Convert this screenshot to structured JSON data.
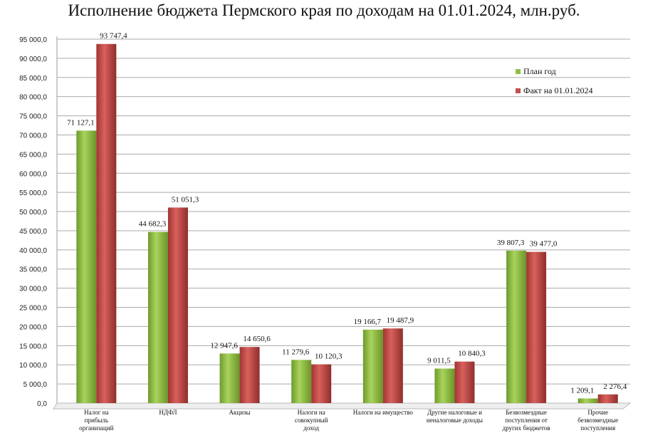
{
  "chart_data": {
    "type": "bar",
    "title": "Исполнение бюджета Пермского края по доходам на 01.01.2024, млн.руб.",
    "xlabel": "",
    "ylabel": "",
    "ylim": [
      0,
      95000
    ],
    "y_ticks": [
      "0,0",
      "5 000,0",
      "10 000,0",
      "15 000,0",
      "20 000,0",
      "25 000,0",
      "30 000,0",
      "35 000,0",
      "40 000,0",
      "45 000,0",
      "50 000,0",
      "55 000,0",
      "60 000,0",
      "65 000,0",
      "70 000,0",
      "75 000,0",
      "80 000,0",
      "85 000,0",
      "90 000,0",
      "95 000,0"
    ],
    "grid": true,
    "legend_position": "top-right",
    "categories": [
      [
        "Налог на",
        "прибыль",
        "организаций"
      ],
      [
        "НДФЛ"
      ],
      [
        "Акцизы"
      ],
      [
        "Налоги на",
        "совокупный",
        "доход"
      ],
      [
        "Налоги на имущество"
      ],
      [
        "Другие налоговые и",
        "неналоговые доходы"
      ],
      [
        "Безвозмездные",
        "поступления от",
        "других бюджетов"
      ],
      [
        "Прочие",
        "безвозмездные",
        "поступления"
      ]
    ],
    "series": [
      {
        "name": "План год",
        "color": "#8fbf45",
        "values": [
          71127.1,
          44682.3,
          12947.6,
          11279.6,
          19166.7,
          9011.5,
          39807.3,
          1209.1
        ],
        "labels": [
          "71 127,1",
          "44 682,3",
          "12 947,6",
          "11 279,6",
          "19 166,7",
          "9 011,5",
          "39 807,3",
          "1 209,1"
        ]
      },
      {
        "name": "Факт на 01.01.2024",
        "color": "#c0504d",
        "values": [
          93747.4,
          51051.3,
          14650.6,
          10120.3,
          19487.9,
          10840.3,
          39477.0,
          2276.4
        ],
        "labels": [
          "93 747,4",
          "51 051,3",
          "14 650,6",
          "10 120,3",
          "19 487,9",
          "10 840,3",
          "39 477,0",
          "2 276,4"
        ]
      }
    ]
  }
}
